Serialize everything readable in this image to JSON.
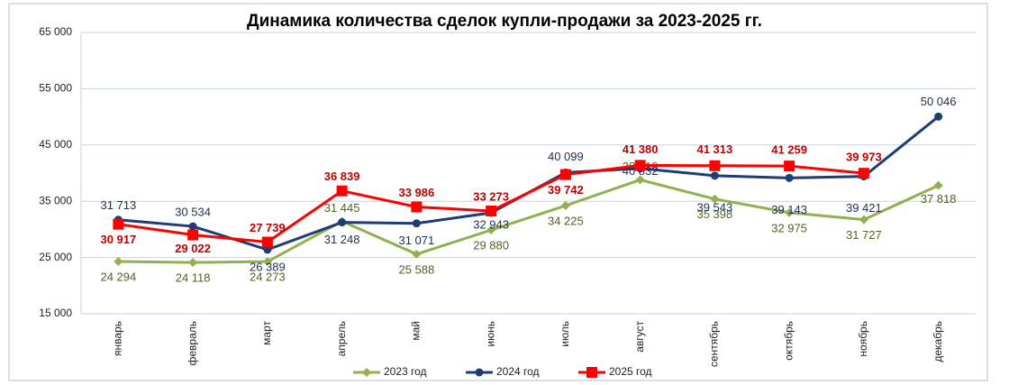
{
  "chart_data": {
    "type": "line",
    "title": "Динамика количества сделок купли-продажи за 2023-2025 гг.",
    "categories": [
      "январь",
      "февраль",
      "март",
      "апрель",
      "май",
      "июнь",
      "июль",
      "август",
      "сентябрь",
      "октябрь",
      "ноябрь",
      "декабрь"
    ],
    "series": [
      {
        "name": "2023 год",
        "color": "#92b050",
        "marker": "diamond",
        "values": [
          24294,
          24118,
          24273,
          31445,
          25588,
          29880,
          34225,
          38810,
          35398,
          32975,
          31727,
          37818
        ],
        "value_labels": [
          "24 294",
          "24 118",
          "24 273",
          "31 445",
          "25 588",
          "29 880",
          "34 225",
          "38 810",
          "35 398",
          "32 975",
          "31 727",
          "37 818"
        ]
      },
      {
        "name": "2024 год",
        "color": "#1f3c74",
        "marker": "circle",
        "values": [
          31713,
          30534,
          26389,
          31248,
          31071,
          32943,
          40099,
          40832,
          39543,
          39143,
          39421,
          50046
        ],
        "value_labels": [
          "31 713",
          "30 534",
          "26 389",
          "31 248",
          "31 071",
          "32 943",
          "40 099",
          "40 832",
          "39 543",
          "39 143",
          "39 421",
          "50 046"
        ]
      },
      {
        "name": "2025 год",
        "color": "#ff0000",
        "marker": "square",
        "values": [
          30917,
          29022,
          27739,
          36839,
          33986,
          33273,
          39742,
          41380,
          41313,
          41259,
          39973,
          null
        ],
        "value_labels": [
          "30 917",
          "29 022",
          "27 739",
          "36 839",
          "33 986",
          "33 273",
          "39 742",
          "41 380",
          "41 313",
          "41 259",
          "39 973",
          null
        ]
      }
    ],
    "ylim": [
      15000,
      65000
    ],
    "yticks": [
      {
        "value": 15000,
        "label": "15 000"
      },
      {
        "value": 25000,
        "label": "25 000"
      },
      {
        "value": 35000,
        "label": "35 000"
      },
      {
        "value": 45000,
        "label": "45 000"
      },
      {
        "value": 55000,
        "label": "55 000"
      },
      {
        "value": 65000,
        "label": "65 000"
      }
    ],
    "grid": true,
    "legend": "bottom"
  }
}
